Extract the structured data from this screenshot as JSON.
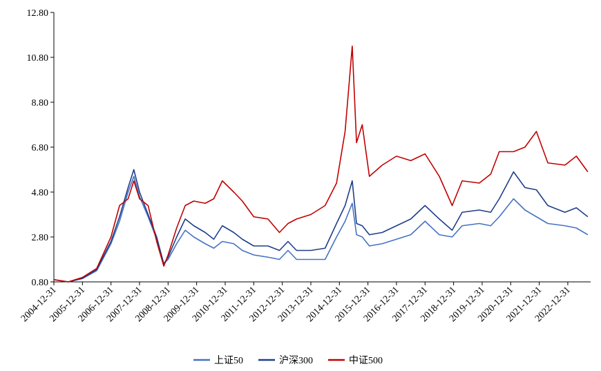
{
  "chart_data": {
    "type": "line",
    "x": [
      2005.0,
      2005.5,
      2006.0,
      2006.5,
      2007.0,
      2007.3,
      2007.6,
      2007.8,
      2008.0,
      2008.3,
      2008.6,
      2008.85,
      2009.0,
      2009.3,
      2009.6,
      2009.9,
      2010.3,
      2010.6,
      2010.9,
      2011.3,
      2011.6,
      2012.0,
      2012.5,
      2012.9,
      2013.2,
      2013.5,
      2014.0,
      2014.5,
      2014.9,
      2015.2,
      2015.45,
      2015.6,
      2015.8,
      2016.05,
      2016.5,
      2017.0,
      2017.5,
      2018.0,
      2018.5,
      2018.95,
      2019.3,
      2019.9,
      2020.3,
      2020.6,
      2021.1,
      2021.5,
      2021.9,
      2022.3,
      2022.9,
      2023.3,
      2023.7
    ],
    "series": [
      {
        "name": "上证50",
        "color": "#4472c4",
        "values": [
          0.9,
          0.8,
          0.95,
          1.3,
          2.5,
          3.5,
          4.8,
          5.5,
          4.6,
          3.7,
          2.7,
          1.6,
          1.8,
          2.5,
          3.1,
          2.8,
          2.5,
          2.3,
          2.6,
          2.5,
          2.2,
          2.0,
          1.9,
          1.8,
          2.2,
          1.8,
          1.8,
          1.8,
          2.8,
          3.5,
          4.3,
          2.9,
          2.8,
          2.4,
          2.5,
          2.7,
          2.9,
          3.5,
          2.9,
          2.8,
          3.3,
          3.4,
          3.3,
          3.7,
          4.5,
          4.0,
          3.7,
          3.4,
          3.3,
          3.2,
          2.9
        ]
      },
      {
        "name": "沪深300",
        "color": "#1f3d8a",
        "values": [
          0.9,
          0.8,
          0.95,
          1.35,
          2.6,
          3.7,
          5.0,
          5.8,
          4.8,
          3.8,
          2.8,
          1.6,
          1.9,
          2.8,
          3.6,
          3.3,
          3.0,
          2.7,
          3.3,
          3.0,
          2.7,
          2.4,
          2.4,
          2.2,
          2.6,
          2.2,
          2.2,
          2.3,
          3.4,
          4.2,
          5.3,
          3.4,
          3.3,
          2.9,
          3.0,
          3.3,
          3.6,
          4.2,
          3.6,
          3.1,
          3.9,
          4.0,
          3.9,
          4.5,
          5.7,
          5.0,
          4.9,
          4.2,
          3.9,
          4.1,
          3.7
        ]
      },
      {
        "name": "中证500",
        "color": "#c00000",
        "values": [
          0.9,
          0.8,
          1.0,
          1.4,
          2.8,
          4.2,
          4.5,
          5.3,
          4.5,
          4.2,
          2.6,
          1.5,
          2.0,
          3.2,
          4.2,
          4.4,
          4.3,
          4.5,
          5.3,
          4.8,
          4.4,
          3.7,
          3.6,
          3.0,
          3.4,
          3.6,
          3.8,
          4.2,
          5.2,
          7.5,
          11.3,
          7.0,
          7.8,
          5.5,
          6.0,
          6.4,
          6.2,
          6.5,
          5.5,
          4.2,
          5.3,
          5.2,
          5.6,
          6.6,
          6.6,
          6.8,
          7.5,
          6.1,
          6.0,
          6.4,
          5.7
        ]
      }
    ],
    "xlim": [
      2005.0,
      2023.8
    ],
    "xticks": [
      {
        "value": 2005,
        "label": "2004-12-31"
      },
      {
        "value": 2006,
        "label": "2005-12-31"
      },
      {
        "value": 2007,
        "label": "2006-12-31"
      },
      {
        "value": 2008,
        "label": "2007-12-31"
      },
      {
        "value": 2009,
        "label": "2008-12-31"
      },
      {
        "value": 2010,
        "label": "2009-12-31"
      },
      {
        "value": 2011,
        "label": "2010-12-31"
      },
      {
        "value": 2012,
        "label": "2011-12-31"
      },
      {
        "value": 2013,
        "label": "2012-12-31"
      },
      {
        "value": 2014,
        "label": "2013-12-31"
      },
      {
        "value": 2015,
        "label": "2014-12-31"
      },
      {
        "value": 2016,
        "label": "2015-12-31"
      },
      {
        "value": 2017,
        "label": "2016-12-31"
      },
      {
        "value": 2018,
        "label": "2017-12-31"
      },
      {
        "value": 2019,
        "label": "2018-12-31"
      },
      {
        "value": 2020,
        "label": "2019-12-31"
      },
      {
        "value": 2021,
        "label": "2020-12-31"
      },
      {
        "value": 2022,
        "label": "2021-12-31"
      },
      {
        "value": 2023,
        "label": "2022-12-31"
      }
    ],
    "ylim": [
      0.8,
      12.8
    ],
    "yticks": [
      {
        "value": 0.8,
        "label": "0.80"
      },
      {
        "value": 2.8,
        "label": "2.80"
      },
      {
        "value": 4.8,
        "label": "4.80"
      },
      {
        "value": 6.8,
        "label": "6.80"
      },
      {
        "value": 8.8,
        "label": "8.80"
      },
      {
        "value": 10.8,
        "label": "10.80"
      },
      {
        "value": 12.8,
        "label": "12.80"
      }
    ],
    "legend": "bottom"
  }
}
